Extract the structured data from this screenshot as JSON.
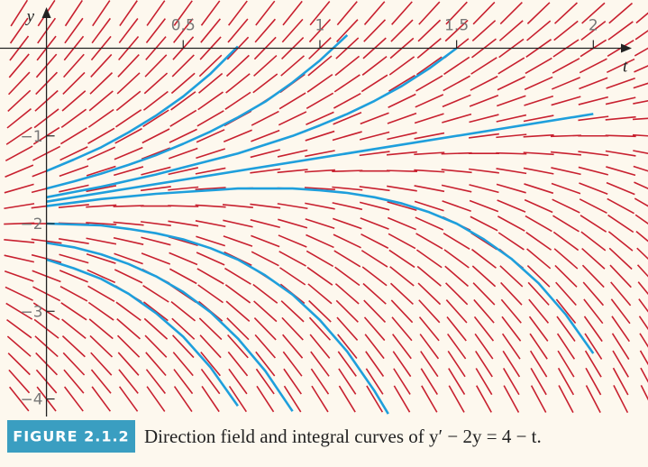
{
  "chart_data": {
    "type": "direction-field",
    "caption_label": "FIGURE 2.1.2",
    "caption": "Direction field and integral curves of y′ − 2y = 4 − t.",
    "xlabel": "t",
    "ylabel": "y",
    "xlim": [
      -0.17,
      2.2
    ],
    "ylim": [
      -4.2,
      0.55
    ],
    "xticks": [
      0.5,
      1,
      1.5,
      2
    ],
    "yticks": [
      {
        "value": -1,
        "label": "−1"
      },
      {
        "value": -2,
        "label": "−2"
      },
      {
        "value": -3,
        "label": "−3"
      },
      {
        "value": -4,
        "label": "−4"
      }
    ],
    "field_color": "#c8202f",
    "series": [
      {
        "color": "#1e9fdc",
        "x": [
          0,
          0.1,
          0.2,
          0.3,
          0.4,
          0.5,
          0.6,
          0.7
        ],
        "values": [
          -1.4,
          -1.27,
          -1.13,
          -0.96,
          -0.77,
          -0.55,
          -0.29,
          0.02
        ]
      },
      {
        "color": "#1e9fdc",
        "x": [
          0,
          0.1,
          0.2,
          0.3,
          0.4,
          0.5,
          0.6,
          0.7,
          0.8,
          0.9,
          1.0,
          1.1
        ],
        "values": [
          -1.6,
          -1.52,
          -1.43,
          -1.33,
          -1.22,
          -1.09,
          -0.95,
          -0.79,
          -0.61,
          -0.39,
          -0.14,
          0.15
        ]
      },
      {
        "color": "#1e9fdc",
        "x": [
          0,
          0.1,
          0.2,
          0.3,
          0.4,
          0.5,
          0.6,
          0.7,
          0.8,
          0.9,
          1.0,
          1.1,
          1.2,
          1.3,
          1.4,
          1.5
        ],
        "values": [
          -1.7,
          -1.64,
          -1.58,
          -1.51,
          -1.44,
          -1.36,
          -1.28,
          -1.2,
          -1.1,
          -1.0,
          -0.88,
          -0.75,
          -0.6,
          -0.43,
          -0.23,
          0.0
        ]
      },
      {
        "color": "#1e9fdc",
        "x": [
          0,
          2
        ],
        "values": [
          -1.75,
          -0.75
        ]
      },
      {
        "color": "#1e9fdc",
        "x": [
          0,
          0.1,
          0.2,
          0.3,
          0.4,
          0.5,
          0.6,
          0.7,
          0.8,
          0.9,
          1.0,
          1.1,
          1.2,
          1.3,
          1.4,
          1.5,
          1.6,
          1.7,
          1.8,
          1.9,
          2.0
        ],
        "values": [
          -1.8,
          -1.76,
          -1.72,
          -1.69,
          -1.66,
          -1.64,
          -1.62,
          -1.6,
          -1.6,
          -1.6,
          -1.62,
          -1.65,
          -1.7,
          -1.77,
          -1.87,
          -2.0,
          -2.18,
          -2.4,
          -2.68,
          -3.04,
          -3.48
        ]
      },
      {
        "color": "#1e9fdc",
        "x": [
          0,
          0.1,
          0.2,
          0.3,
          0.4,
          0.5,
          0.6,
          0.7,
          0.8,
          0.9,
          1.0,
          1.1,
          1.2,
          1.25
        ],
        "values": [
          -2.0,
          -2.01,
          -2.02,
          -2.06,
          -2.11,
          -2.18,
          -2.28,
          -2.41,
          -2.59,
          -2.81,
          -3.1,
          -3.46,
          -3.91,
          -4.17
        ]
      },
      {
        "color": "#1e9fdc",
        "x": [
          0,
          0.1,
          0.2,
          0.3,
          0.4,
          0.5,
          0.6,
          0.7,
          0.8,
          0.9
        ],
        "values": [
          -2.22,
          -2.27,
          -2.35,
          -2.46,
          -2.6,
          -2.78,
          -3.01,
          -3.31,
          -3.68,
          -4.14
        ]
      },
      {
        "color": "#1e9fdc",
        "x": [
          0,
          0.1,
          0.2,
          0.3,
          0.4,
          0.5,
          0.6,
          0.7
        ],
        "values": [
          -2.41,
          -2.51,
          -2.63,
          -2.8,
          -3.02,
          -3.29,
          -3.64,
          -4.08
        ]
      }
    ]
  }
}
